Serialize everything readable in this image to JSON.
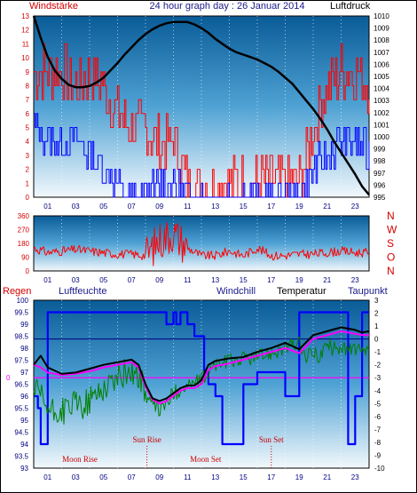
{
  "colors": {
    "wind": "#ff0000",
    "gust_blue": "#0000ff",
    "pressure": "#000000",
    "direction": "#ff0000",
    "humidity": "#0000ff",
    "temperature": "#000000",
    "windchill": "#008000",
    "dewpoint": "#ff00ff",
    "axis_blue": "#000080",
    "axis_red": "#d40000"
  },
  "chart_data": [
    {
      "type": "line",
      "title": "24 hour graph day : 26 Januar 2014",
      "left_axis_label": "Windstärke",
      "right_axis_label": "Luftdruck",
      "x_ticks": [
        "01",
        "03",
        "05",
        "07",
        "09",
        "11",
        "13",
        "15",
        "17",
        "19",
        "21",
        "23"
      ],
      "x_range_hours": [
        0,
        24
      ],
      "y_left_range": [
        0,
        13
      ],
      "y_left_ticks": [
        "0",
        "1",
        "2",
        "3",
        "4",
        "5",
        "6",
        "7",
        "8",
        "9",
        "10",
        "11",
        "12",
        "13"
      ],
      "y_right_range": [
        995,
        1010
      ],
      "y_right_ticks": [
        "995",
        "996",
        "997",
        "998",
        "999",
        "1000",
        "1001",
        "1002",
        "1003",
        "1004",
        "1005",
        "1006",
        "1007",
        "1008",
        "1009",
        "1010"
      ],
      "series": [
        {
          "name": "Luftdruck",
          "color": "#000000",
          "x": [
            0,
            0.5,
            1,
            1.5,
            2,
            2.5,
            3,
            3.5,
            4,
            4.5,
            5,
            5.5,
            6,
            6.5,
            7,
            7.5,
            8,
            8.5,
            9,
            9.5,
            10,
            10.5,
            11,
            11.5,
            12,
            12.5,
            13,
            13.5,
            14,
            14.5,
            15,
            15.5,
            16,
            16.5,
            17,
            17.5,
            18,
            18.5,
            19,
            19.5,
            20,
            20.5,
            21,
            21.5,
            22,
            22.5,
            23,
            23.5,
            24
          ],
          "values": [
            1010,
            1008.2,
            1006.6,
            1005.5,
            1004.8,
            1004.3,
            1004.1,
            1004.1,
            1004.2,
            1004.5,
            1004.9,
            1005.5,
            1006.1,
            1006.8,
            1007.4,
            1008,
            1008.5,
            1008.9,
            1009.2,
            1009.4,
            1009.5,
            1009.5,
            1009.5,
            1009.3,
            1009.0,
            1008.6,
            1008.1,
            1007.7,
            1007.3,
            1007.0,
            1006.8,
            1006.6,
            1006.4,
            1006.1,
            1005.8,
            1005.4,
            1004.9,
            1004.4,
            1003.7,
            1003.0,
            1002.3,
            1001.5,
            1000.6,
            999.6,
            998.7,
            997.8,
            996.9,
            995.9,
            995.2
          ]
        },
        {
          "name": "Wind (gusts)",
          "color": "#ff0000",
          "hours": [
            0,
            1,
            2,
            3,
            4,
            5,
            6,
            7,
            8,
            9,
            10,
            11,
            12,
            13,
            14,
            15,
            16,
            17,
            18,
            19,
            20,
            21,
            22,
            23,
            24
          ],
          "values": [
            9,
            9,
            9,
            8,
            9,
            8,
            6,
            5,
            5,
            4,
            4,
            1,
            1,
            1,
            1,
            1,
            1,
            1,
            1,
            1,
            5,
            8,
            9,
            9,
            8
          ]
        },
        {
          "name": "Wind (mean)",
          "color": "#0000ff",
          "hours": [
            0,
            1,
            2,
            3,
            4,
            5,
            6,
            7,
            8,
            9,
            10,
            11,
            12,
            13,
            14,
            15,
            16,
            17,
            18,
            19,
            20,
            21,
            22,
            23,
            24
          ],
          "values": [
            5,
            4,
            4,
            4,
            3,
            2,
            1,
            0,
            0,
            1,
            1,
            0,
            0,
            0,
            0,
            0,
            0,
            0,
            0,
            0,
            2,
            3,
            4,
            4,
            3
          ]
        }
      ]
    },
    {
      "type": "line",
      "right_axis_labels": [
        "N",
        "W",
        "S",
        "O",
        "N"
      ],
      "y_range": [
        0,
        360
      ],
      "y_ticks": [
        "0",
        "90",
        "180",
        "270",
        "360"
      ],
      "x_ticks": [
        "01",
        "03",
        "05",
        "07",
        "09",
        "11",
        "13",
        "15",
        "17",
        "19",
        "21",
        "23"
      ],
      "series": [
        {
          "name": "Windrichtung",
          "color": "#ff0000",
          "hours": [
            0,
            1,
            2,
            3,
            4,
            5,
            6,
            7,
            8,
            9,
            10,
            11,
            12,
            13,
            14,
            15,
            16,
            17,
            18,
            19,
            20,
            21,
            22,
            23,
            24
          ],
          "values": [
            150,
            120,
            130,
            140,
            130,
            120,
            110,
            110,
            100,
            200,
            250,
            150,
            100,
            100,
            130,
            100,
            150,
            100,
            100,
            110,
            110,
            120,
            130,
            120,
            120
          ]
        }
      ]
    },
    {
      "type": "line",
      "labels": {
        "rain": "Regen",
        "humidity": "Luftfeuchte",
        "windchill": "Windchill",
        "temperature": "Temperatur",
        "dewpoint": "Taupunkt"
      },
      "y_left_ticks": [
        "93",
        "93.5",
        "94",
        "94.5",
        "95",
        "95.5",
        "96",
        "96.5",
        "97",
        "97.5",
        "98",
        "98.5",
        "99",
        "99.5",
        "100"
      ],
      "y_left_range": [
        93,
        100
      ],
      "y_right_ticks": [
        "-10",
        "-9",
        "-8",
        "-7",
        "-6",
        "-5",
        "-4",
        "-3",
        "-2",
        "-1",
        "0",
        "1",
        "2",
        "3"
      ],
      "y_right_range": [
        -10,
        3
      ],
      "rain_axis_value": "0",
      "x_ticks": [
        "01",
        "03",
        "05",
        "07",
        "09",
        "11",
        "13",
        "15",
        "17",
        "19",
        "21",
        "23"
      ],
      "events": [
        {
          "label": "Sun Rise",
          "hour": 8.1
        },
        {
          "label": "Moon Rise",
          "hour": 3.3
        },
        {
          "label": "Moon Set",
          "hour": 12.3
        },
        {
          "label": "Sun Set",
          "hour": 17.0
        }
      ],
      "series": [
        {
          "name": "Luftfeuchte",
          "color": "#0000ff",
          "x": [
            0,
            0.3,
            0.5,
            0.8,
            1,
            2,
            3,
            4,
            5,
            6,
            7,
            8,
            9,
            9.5,
            10,
            10.2,
            10.5,
            11,
            11.5,
            12,
            12.2,
            12.5,
            13,
            13.5,
            14,
            15,
            16,
            17,
            18,
            19,
            19.5,
            20,
            21,
            22,
            22.5,
            23,
            23.5,
            24
          ],
          "values": [
            96,
            95.5,
            94,
            94,
            99.5,
            99.5,
            99.5,
            99.5,
            99.5,
            99.5,
            99.5,
            99.5,
            99.5,
            99,
            99.5,
            99,
            99.5,
            99,
            98.5,
            98.5,
            97,
            96.5,
            96,
            94,
            94,
            96.5,
            97,
            97,
            96,
            99.5,
            99.5,
            99.5,
            99.5,
            99.5,
            94,
            96,
            99.5,
            99.5
          ]
        },
        {
          "name": "Temperatur",
          "color": "#000000",
          "x": [
            0,
            0.5,
            1,
            2,
            3,
            4,
            5,
            6,
            7,
            7.5,
            8,
            8.5,
            9,
            9.5,
            10,
            10.5,
            11,
            11.5,
            12,
            12.5,
            13,
            14,
            15,
            16,
            17,
            18,
            19,
            20,
            21,
            22,
            23,
            23.5,
            24
          ],
          "values": [
            -2,
            -1.3,
            -2.2,
            -2.7,
            -2.6,
            -2.3,
            -2.0,
            -1.8,
            -1.6,
            -2.0,
            -3.5,
            -4.6,
            -4.8,
            -4.6,
            -4.2,
            -3.8,
            -3.6,
            -3.6,
            -3.2,
            -2.0,
            -1.7,
            -1.5,
            -1.4,
            -1.0,
            -0.7,
            -0.3,
            -0.8,
            0.3,
            0.6,
            0.9,
            0.7,
            0.5,
            0.6
          ]
        },
        {
          "name": "Taupunkt",
          "color": "#ff00ff",
          "x": [
            0,
            0.5,
            1,
            2,
            3,
            4,
            5,
            6,
            7,
            7.5,
            8,
            8.5,
            9,
            9.5,
            10,
            10.5,
            11,
            11.5,
            12,
            12.5,
            13,
            14,
            15,
            16,
            17,
            18,
            19,
            20,
            21,
            22,
            23,
            23.5,
            24
          ],
          "values": [
            -2,
            -2.2,
            -2.6,
            -2.8,
            -2.7,
            -2.5,
            -2.2,
            -2.0,
            -1.8,
            -2.2,
            -3.7,
            -4.7,
            -5.0,
            -4.8,
            -4.4,
            -4.0,
            -3.8,
            -3.8,
            -3.5,
            -2.4,
            -2.1,
            -1.9,
            -1.6,
            -1.3,
            -1.0,
            -0.7,
            -1.1,
            0,
            0.3,
            0.6,
            0.4,
            0.3,
            0.3
          ]
        },
        {
          "name": "Windchill",
          "color": "#008000",
          "x": [
            0,
            0.5,
            1,
            1.5,
            2,
            2.5,
            3,
            3.5,
            4,
            4.5,
            5,
            5.5,
            6,
            6.5,
            7,
            7.5,
            8,
            8.5,
            9,
            9.5,
            10,
            11,
            12,
            13,
            14,
            15,
            16,
            17,
            18,
            19,
            19.5,
            20,
            20.5,
            21,
            21.5,
            22,
            22.5,
            23,
            23.5,
            24
          ],
          "values": [
            -4,
            -4.5,
            -5.5,
            -5.8,
            -5.6,
            -5.3,
            -5.0,
            -5.2,
            -4.8,
            -4.2,
            -3.8,
            -3.3,
            -3.0,
            -2.6,
            -2.5,
            -2.8,
            -4.2,
            -5.2,
            -5.5,
            -5.0,
            -4.2,
            -3.6,
            -3.2,
            -2.0,
            -1.7,
            -1.5,
            -1.4,
            -1.0,
            -0.7,
            -0.3,
            -1.5,
            -1.0,
            -1.3,
            -0.5,
            -0.8,
            -0.5,
            -1.0,
            -0.6,
            -1.2,
            -1.0
          ]
        }
      ]
    }
  ]
}
